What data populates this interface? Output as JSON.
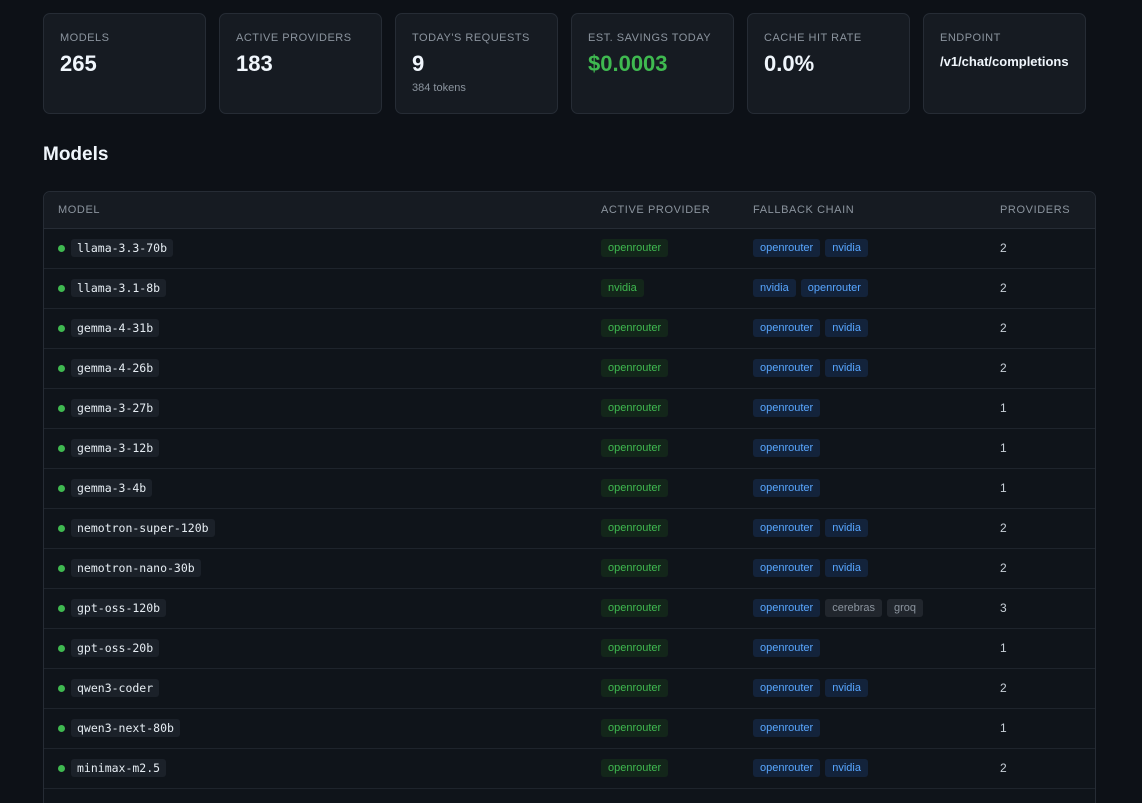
{
  "stats": [
    {
      "label": "MODELS",
      "value": "265",
      "sub": ""
    },
    {
      "label": "ACTIVE PROVIDERS",
      "value": "183",
      "sub": ""
    },
    {
      "label": "TODAY'S REQUESTS",
      "value": "9",
      "sub": "384 tokens"
    },
    {
      "label": "EST. SAVINGS TODAY",
      "value": "$0.0003",
      "sub": ""
    },
    {
      "label": "CACHE HIT RATE",
      "value": "0.0%",
      "sub": ""
    },
    {
      "label": "ENDPOINT",
      "value": "/v1/chat/completions",
      "sub": ""
    }
  ],
  "section_title": "Models",
  "table": {
    "headers": [
      "MODEL",
      "ACTIVE PROVIDER",
      "FALLBACK CHAIN",
      "PROVIDERS"
    ],
    "rows": [
      {
        "model": "llama-3.3-70b",
        "active": "openrouter",
        "chain": [
          "openrouter",
          "nvidia"
        ],
        "count": "2"
      },
      {
        "model": "llama-3.1-8b",
        "active": "nvidia",
        "chain": [
          "nvidia",
          "openrouter"
        ],
        "count": "2"
      },
      {
        "model": "gemma-4-31b",
        "active": "openrouter",
        "chain": [
          "openrouter",
          "nvidia"
        ],
        "count": "2"
      },
      {
        "model": "gemma-4-26b",
        "active": "openrouter",
        "chain": [
          "openrouter",
          "nvidia"
        ],
        "count": "2"
      },
      {
        "model": "gemma-3-27b",
        "active": "openrouter",
        "chain": [
          "openrouter"
        ],
        "count": "1"
      },
      {
        "model": "gemma-3-12b",
        "active": "openrouter",
        "chain": [
          "openrouter"
        ],
        "count": "1"
      },
      {
        "model": "gemma-3-4b",
        "active": "openrouter",
        "chain": [
          "openrouter"
        ],
        "count": "1"
      },
      {
        "model": "nemotron-super-120b",
        "active": "openrouter",
        "chain": [
          "openrouter",
          "nvidia"
        ],
        "count": "2"
      },
      {
        "model": "nemotron-nano-30b",
        "active": "openrouter",
        "chain": [
          "openrouter",
          "nvidia"
        ],
        "count": "2"
      },
      {
        "model": "gpt-oss-120b",
        "active": "openrouter",
        "chain": [
          "openrouter",
          "cerebras",
          "groq"
        ],
        "count": "3"
      },
      {
        "model": "gpt-oss-20b",
        "active": "openrouter",
        "chain": [
          "openrouter"
        ],
        "count": "1"
      },
      {
        "model": "qwen3-coder",
        "active": "openrouter",
        "chain": [
          "openrouter",
          "nvidia"
        ],
        "count": "2"
      },
      {
        "model": "qwen3-next-80b",
        "active": "openrouter",
        "chain": [
          "openrouter"
        ],
        "count": "1"
      },
      {
        "model": "minimax-m2.5",
        "active": "openrouter",
        "chain": [
          "openrouter",
          "nvidia"
        ],
        "count": "2"
      }
    ]
  },
  "colors": {
    "status_ok": "#3fb950",
    "chain_primary": "#58a6ff",
    "chain_inactive": "#8b949e"
  },
  "chain_active_providers": [
    "openrouter",
    "nvidia"
  ]
}
